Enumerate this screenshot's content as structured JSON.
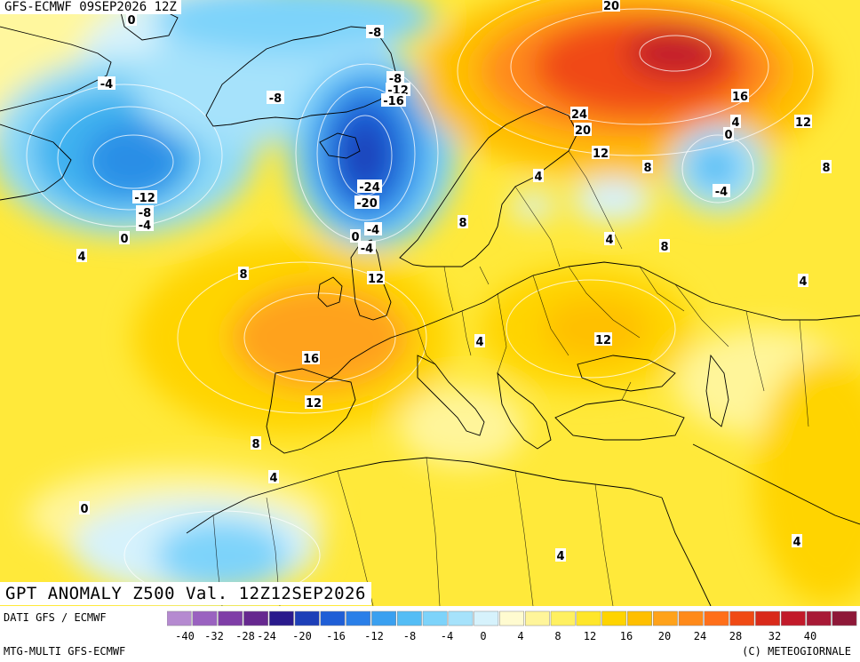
{
  "header": {
    "title": "GFS-ECMWF 09SEP2026 12Z"
  },
  "map": {
    "title": "GPT ANOMALY Z500 Val. 12Z12SEP2026",
    "labels": [
      {
        "text": "20"
      },
      {
        "text": "0"
      },
      {
        "text": "-8"
      },
      {
        "text": "-4"
      },
      {
        "text": "-8"
      },
      {
        "text": "-8"
      },
      {
        "text": "-12"
      },
      {
        "text": "-16"
      },
      {
        "text": "16"
      },
      {
        "text": "24"
      },
      {
        "text": "4"
      },
      {
        "text": "12"
      },
      {
        "text": "20"
      },
      {
        "text": "0"
      },
      {
        "text": "12"
      },
      {
        "text": "8"
      },
      {
        "text": "8"
      },
      {
        "text": "-12"
      },
      {
        "text": "-8"
      },
      {
        "text": "-4"
      },
      {
        "text": "-24"
      },
      {
        "text": "-20"
      },
      {
        "text": "4"
      },
      {
        "text": "0"
      },
      {
        "text": "-4"
      },
      {
        "text": "-4"
      },
      {
        "text": "0"
      },
      {
        "text": "-4"
      },
      {
        "text": "8"
      },
      {
        "text": "4"
      },
      {
        "text": "8"
      },
      {
        "text": "4"
      },
      {
        "text": "8"
      },
      {
        "text": "12"
      },
      {
        "text": "4"
      },
      {
        "text": "16"
      },
      {
        "text": "12"
      },
      {
        "text": "4"
      },
      {
        "text": "12"
      },
      {
        "text": "8"
      },
      {
        "text": "4"
      },
      {
        "text": "0"
      },
      {
        "text": "4"
      },
      {
        "text": "4"
      }
    ]
  },
  "footer": {
    "source_line": "DATI GFS / ECMWF",
    "model_line": "MTG-MULTI GFS-ECMWF",
    "copyright": "(C) METEOGIORNALE"
  },
  "legend": {
    "colors": [
      "#b58ad0",
      "#9a62c0",
      "#7f3ea7",
      "#66288f",
      "#2a1a8c",
      "#1d3fb8",
      "#1f5ed6",
      "#2a7fe8",
      "#3aa0f0",
      "#54bdf5",
      "#7dd3fa",
      "#a6e2fb",
      "#d6f2fc",
      "#fffbd0",
      "#fff59a",
      "#fff060",
      "#ffe62a",
      "#ffd400",
      "#ffbf00",
      "#ffa21a",
      "#ff8a1a",
      "#ff6f1a",
      "#f04a14",
      "#d92a1a",
      "#c21a2a",
      "#a81a36",
      "#8e1838"
    ],
    "ticks": [
      "-40",
      "-32",
      "-28",
      "-24",
      "-20",
      "-16",
      "-12",
      "-8",
      "-4",
      "0",
      "4",
      "8",
      "12",
      "16",
      "20",
      "24",
      "28",
      "32",
      "40"
    ]
  }
}
